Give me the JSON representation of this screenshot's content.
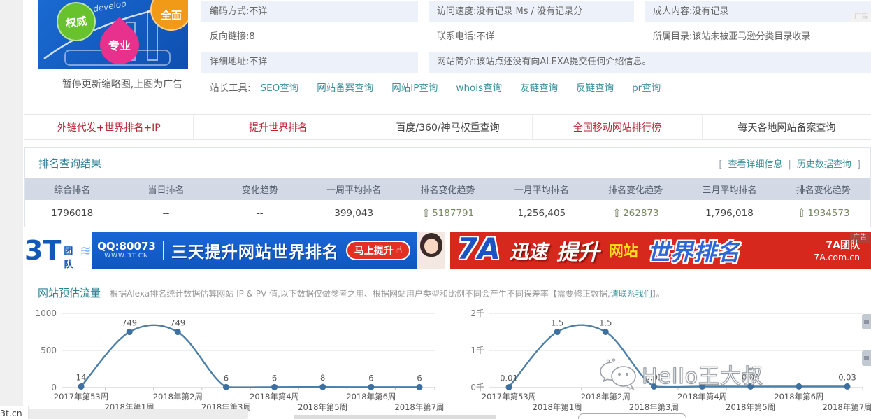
{
  "colors": {
    "link_teal": "#3a8f9b",
    "accent_red": "#ba2636",
    "header_bg": "#d3d9e5",
    "row_shade": "#edf1f9",
    "line_blue": "#4d7fa6",
    "point_blue": "#3d6f9f",
    "up_green": "#77885f",
    "banner_red": "#d6281c",
    "banner_blue": "#1a66d6"
  },
  "thumb": {
    "badge_green": "权威",
    "badge_pink": "专业",
    "badge_orange": "全面",
    "script_text": "develop",
    "caption": "暂停更新缩略图,上图为广告"
  },
  "info": {
    "rows": [
      {
        "cells": [
          {
            "text": "编码方式:不详"
          },
          {
            "text": "访问速度:没有记录 Ms / 没有记录分"
          },
          {
            "text": "成人内容:没有记录"
          }
        ]
      },
      {
        "cells": [
          {
            "text": "反向链接:8"
          },
          {
            "text": "联系电话:不详"
          },
          {
            "text": "所属目录:该站未被亚马逊分类目录收录"
          }
        ]
      },
      {
        "cells": [
          {
            "text": "详细地址:不详"
          },
          {
            "text": "网站简介:该站点还没有向ALEXA提交任何介绍信息。",
            "span": 2
          }
        ]
      }
    ],
    "tools_label": "站长工具:",
    "tools": [
      "SEO查询",
      "网站备案查询",
      "网站IP查询",
      "whois查询",
      "友链查询",
      "反链查询",
      "pr查询"
    ]
  },
  "ad_label": "广告",
  "tabs": [
    {
      "label": "外链代发+世界排名+IP",
      "accent": true
    },
    {
      "label": "提升世界排名",
      "accent": true
    },
    {
      "label": "百度/360/神马权重查询",
      "accent": false
    },
    {
      "label": "全国移动网站排行榜",
      "accent": true
    },
    {
      "label": "每天各地网站备案查询",
      "accent": false
    }
  ],
  "ranking": {
    "title": "排名查询结果",
    "bracket_open": "[",
    "bracket_close": "]",
    "link_sep": "|",
    "links": [
      "查看详细信息",
      "历史数据查询"
    ],
    "columns": [
      "综合排名",
      "当日排名",
      "变化趋势",
      "一周平均排名",
      "排名变化趋势",
      "一月平均排名",
      "排名变化趋势",
      "三月平均排名",
      "排名变化趋势"
    ],
    "arrow_char": "⇧",
    "row": [
      {
        "v": "1796018"
      },
      {
        "v": "--"
      },
      {
        "v": "--"
      },
      {
        "v": "399,043"
      },
      {
        "v": "5187791",
        "up": true
      },
      {
        "v": "1,256,405"
      },
      {
        "v": "262873",
        "up": true
      },
      {
        "v": "1,796,018"
      },
      {
        "v": "1934573",
        "up": true
      }
    ]
  },
  "banner3t": {
    "ad": "广告",
    "logo": "3T",
    "logo_sub": "团队",
    "squiggle": "≋",
    "qq": "QQ:80073",
    "url": "WWW.3T.CN",
    "slogan": "三天提升网站世界排名",
    "cta": "马上提升",
    "cta_icon": "☝"
  },
  "banner7a": {
    "ad": "广告",
    "logo": "7A",
    "w1": "迅速",
    "w2": "提升",
    "w3": "网站",
    "w4": "世界排名",
    "team": "7A团队",
    "url": "7A.com.cn"
  },
  "traffic": {
    "title": "网站预估流量",
    "desc": "根据Alexa排名统计数据估算网站 IP & PV 值,以下数据仅做参考之用、根据网站用户类型和比例不同会产生不同误差率【需要修正数据,",
    "link": "请联系我们",
    "desc_end": "】。"
  },
  "chart_data": [
    {
      "type": "line",
      "x": [
        "2017年第53周",
        "2018年第1周",
        "2018年第2周",
        "2018年第3周",
        "2018年第4周",
        "2018年第5周",
        "2018年第6周",
        "2018年第7周"
      ],
      "values": [
        14,
        749,
        749,
        6,
        6,
        8,
        6,
        6
      ],
      "point_labels": [
        "14",
        "749",
        "749",
        "6",
        "6",
        "8",
        "6",
        "6"
      ],
      "ylim": [
        0,
        1000
      ],
      "yticks": [
        {
          "v": 0,
          "label": "0"
        },
        {
          "v": 500,
          "label": "500"
        },
        {
          "v": 1000,
          "label": "1000"
        }
      ],
      "grid": true,
      "legend": "none",
      "line_color": "#4d7fa6",
      "point_color": "#3d6f9f"
    },
    {
      "type": "line",
      "x": [
        "2017年第53周",
        "2018年第1周",
        "2018年第2周",
        "2018年第3周",
        "2018年第4周",
        "2018年第5周",
        "2018年第6周",
        "2018年第7周"
      ],
      "values": [
        0.01,
        1.5,
        1.5,
        0.03,
        0.03,
        0.03,
        0.03,
        0.03
      ],
      "point_labels": [
        "0.01",
        "1.5",
        "1.5",
        "0.03",
        "",
        "0.03",
        "",
        "0.03"
      ],
      "ylim": [
        0,
        2
      ],
      "yticks": [
        {
          "v": 0,
          "label": "0千"
        },
        {
          "v": 1,
          "label": "1千"
        },
        {
          "v": 2,
          "label": "2千"
        }
      ],
      "grid": true,
      "legend": "none",
      "line_color": "#4d7fa6",
      "point_color": "#3d6f9f"
    }
  ],
  "watermark": {
    "text": "Hello王大叔"
  },
  "status_url": "3t.cn"
}
